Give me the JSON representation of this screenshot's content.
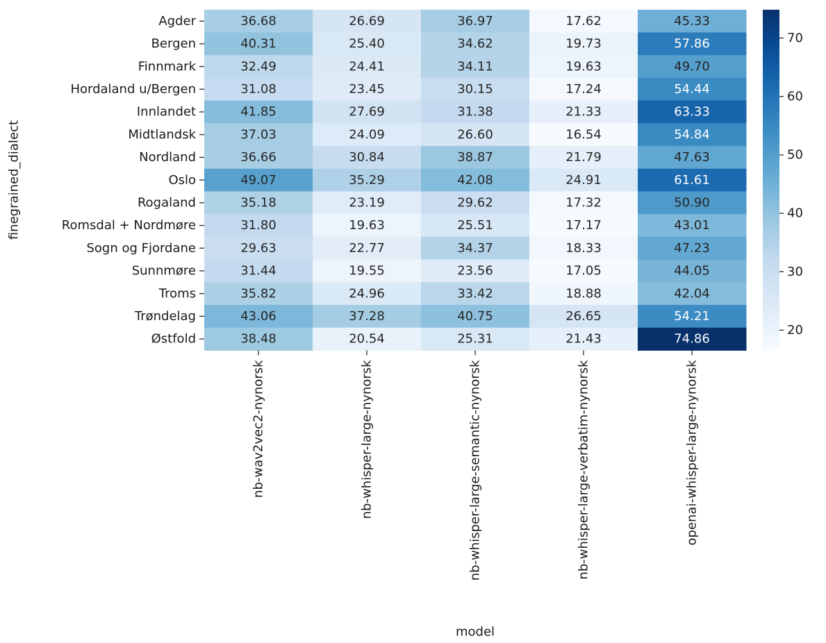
{
  "chart_data": {
    "type": "heatmap",
    "xlabel": "model",
    "ylabel": "finegrained_dialect",
    "x_categories": [
      "nb-wav2vec2-nynorsk",
      "nb-whisper-large-nynorsk",
      "nb-whisper-large-semantic-nynorsk",
      "nb-whisper-large-verbatim-nynorsk",
      "openai-whisper-large-nynorsk"
    ],
    "y_categories": [
      "Agder",
      "Bergen",
      "Finnmark",
      "Hordaland u/Bergen",
      "Innlandet",
      "Midtlandsk",
      "Nordland",
      "Oslo",
      "Rogaland",
      "Romsdal + Nordmøre",
      "Sogn og Fjordane",
      "Sunnmøre",
      "Troms",
      "Trøndelag",
      "Østfold"
    ],
    "values": [
      [
        36.68,
        26.69,
        36.97,
        17.62,
        45.33
      ],
      [
        40.31,
        25.4,
        34.62,
        19.73,
        57.86
      ],
      [
        32.49,
        24.41,
        34.11,
        19.63,
        49.7
      ],
      [
        31.08,
        23.45,
        30.15,
        17.24,
        54.44
      ],
      [
        41.85,
        27.69,
        31.38,
        21.33,
        63.33
      ],
      [
        37.03,
        24.09,
        26.6,
        16.54,
        54.84
      ],
      [
        36.66,
        30.84,
        38.87,
        21.79,
        47.63
      ],
      [
        49.07,
        35.29,
        42.08,
        24.91,
        61.61
      ],
      [
        35.18,
        23.19,
        29.62,
        17.32,
        50.9
      ],
      [
        31.8,
        19.63,
        25.51,
        17.17,
        43.01
      ],
      [
        29.63,
        22.77,
        34.37,
        18.33,
        47.23
      ],
      [
        31.44,
        19.55,
        23.56,
        17.05,
        44.05
      ],
      [
        35.82,
        24.96,
        33.42,
        18.88,
        42.04
      ],
      [
        43.06,
        37.28,
        40.75,
        26.65,
        54.21
      ],
      [
        38.48,
        20.54,
        25.31,
        21.43,
        74.86
      ]
    ],
    "colormap": "Blues",
    "colorbar": {
      "ticks": [
        20,
        30,
        40,
        50,
        60,
        70
      ],
      "range": [
        16.54,
        74.86
      ]
    },
    "legend": "colorbar right"
  }
}
